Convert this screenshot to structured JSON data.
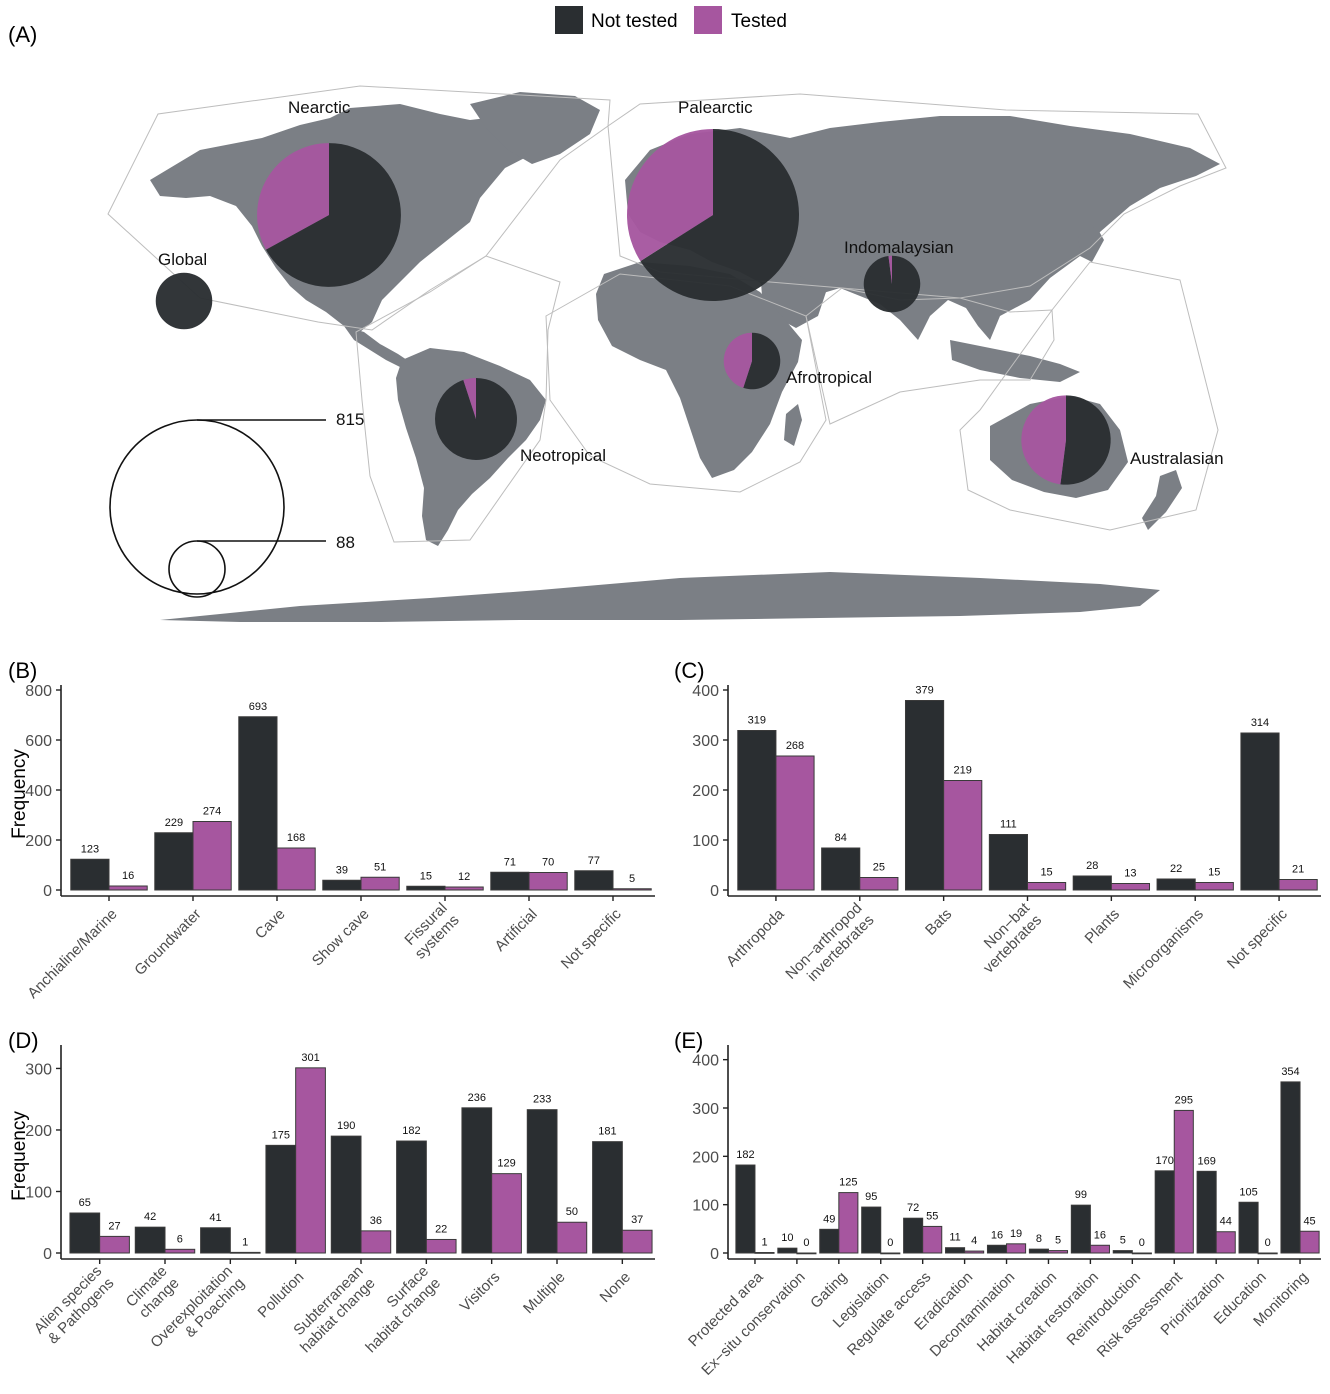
{
  "colors": {
    "not_tested": "#2a2e31",
    "tested": "#a6569f",
    "land": "#7b7f85",
    "realm_border": "#bdbdbd",
    "axis": "#222222",
    "tick_label": "#4d4d4d"
  },
  "legend": {
    "not_tested": "Not tested",
    "tested": "Tested"
  },
  "panel_labels": {
    "a": "(A)",
    "b": "(B)",
    "c": "(C)",
    "d": "(D)",
    "e": "(E)"
  },
  "map": {
    "realms": [
      {
        "name": "Nearctic",
        "total": 570,
        "tested_fraction": 0.33
      },
      {
        "name": "Palearctic",
        "total": 815,
        "tested_fraction": 0.34
      },
      {
        "name": "Global",
        "total": 88,
        "tested_fraction": 0.0
      },
      {
        "name": "Indomalaysian",
        "total": 88,
        "tested_fraction": 0.02
      },
      {
        "name": "Afrotropical",
        "total": 88,
        "tested_fraction": 0.45
      },
      {
        "name": "Neotropical",
        "total": 185,
        "tested_fraction": 0.05
      },
      {
        "name": "Australasian",
        "total": 220,
        "tested_fraction": 0.48
      }
    ],
    "size_legend": {
      "large": "815",
      "small": "88"
    }
  },
  "chart_data": [
    {
      "panel": "B",
      "type": "bar",
      "ylabel": "Frequency",
      "ylim": [
        0,
        800
      ],
      "yticks": [
        0,
        200,
        400,
        600,
        800
      ],
      "categories": [
        "Anchialine/Marine",
        "Groundwater",
        "Cave",
        "Show cave",
        "Fissural systems",
        "Artificial",
        "Not specific"
      ],
      "tick_lines": [
        [
          "Anchialine/Marine"
        ],
        [
          "Groundwater"
        ],
        [
          "Cave"
        ],
        [
          "Show cave"
        ],
        [
          "Fissural",
          "systems"
        ],
        [
          "Artificial"
        ],
        [
          "Not specific"
        ]
      ],
      "series": [
        {
          "name": "Not tested",
          "values": [
            123,
            229,
            693,
            39,
            15,
            71,
            77
          ]
        },
        {
          "name": "Tested",
          "values": [
            16,
            274,
            168,
            51,
            12,
            70,
            5
          ]
        }
      ]
    },
    {
      "panel": "C",
      "type": "bar",
      "ylabel": "",
      "ylim": [
        0,
        400
      ],
      "yticks": [
        0,
        100,
        200,
        300,
        400
      ],
      "categories": [
        "Arthropoda",
        "Non−arthropod invertebrates",
        "Bats",
        "Non−bat vertebrates",
        "Plants",
        "Microorganisms",
        "Not specific"
      ],
      "tick_lines": [
        [
          "Arthropoda"
        ],
        [
          "Non−arthropod",
          "invertebrates"
        ],
        [
          "Bats"
        ],
        [
          "Non−bat",
          "vertebrates"
        ],
        [
          "Plants"
        ],
        [
          "Microorganisms"
        ],
        [
          "Not specific"
        ]
      ],
      "series": [
        {
          "name": "Not tested",
          "values": [
            319,
            84,
            379,
            111,
            28,
            22,
            314
          ]
        },
        {
          "name": "Tested",
          "values": [
            268,
            25,
            219,
            15,
            13,
            15,
            21
          ]
        }
      ]
    },
    {
      "panel": "D",
      "type": "bar",
      "ylabel": "Frequency",
      "ylim": [
        0,
        330
      ],
      "yticks": [
        0,
        100,
        200,
        300
      ],
      "categories": [
        "Alien species & Pathogens",
        "Climate change",
        "Overexploitation & Poaching",
        "Pollution",
        "Subterranean habitat change",
        "Surface habitat change",
        "Visitors",
        "Multiple",
        "None"
      ],
      "tick_lines": [
        [
          "Alien species",
          "& Pathogens"
        ],
        [
          "Climate",
          "change"
        ],
        [
          "Overexploitation",
          "& Poaching"
        ],
        [
          "Pollution"
        ],
        [
          "Subterranean",
          "habitat change"
        ],
        [
          "Surface",
          "habitat change"
        ],
        [
          "Visitors"
        ],
        [
          "Multiple"
        ],
        [
          "None"
        ]
      ],
      "series": [
        {
          "name": "Not tested",
          "values": [
            65,
            42,
            41,
            175,
            190,
            182,
            236,
            233,
            181
          ]
        },
        {
          "name": "Tested",
          "values": [
            27,
            6,
            1,
            301,
            36,
            22,
            129,
            50,
            37
          ]
        }
      ]
    },
    {
      "panel": "E",
      "type": "bar",
      "ylabel": "",
      "ylim": [
        0,
        420
      ],
      "yticks": [
        0,
        100,
        200,
        300,
        400
      ],
      "categories": [
        "Protected area",
        "Ex−situ conservation",
        "Gating",
        "Legislation",
        "Regulate access",
        "Eradication",
        "Decontamination",
        "Habitat creation",
        "Habitat restoration",
        "Reintroduction",
        "Risk assessment",
        "Prioritization",
        "Education",
        "Monitoring"
      ],
      "tick_lines": [
        [
          "Protected area"
        ],
        [
          "Ex−situ conservation"
        ],
        [
          "Gating"
        ],
        [
          "Legislation"
        ],
        [
          "Regulate access"
        ],
        [
          "Eradication"
        ],
        [
          "Decontamination"
        ],
        [
          "Habitat creation"
        ],
        [
          "Habitat restoration"
        ],
        [
          "Reintroduction"
        ],
        [
          "Risk assessment"
        ],
        [
          "Prioritization"
        ],
        [
          "Education"
        ],
        [
          "Monitoring"
        ]
      ],
      "series": [
        {
          "name": "Not tested",
          "values": [
            182,
            10,
            49,
            95,
            72,
            11,
            16,
            8,
            99,
            5,
            170,
            169,
            105,
            354
          ]
        },
        {
          "name": "Tested",
          "values": [
            1,
            0,
            125,
            0,
            55,
            4,
            19,
            5,
            16,
            0,
            295,
            44,
            0,
            45
          ]
        }
      ]
    }
  ]
}
